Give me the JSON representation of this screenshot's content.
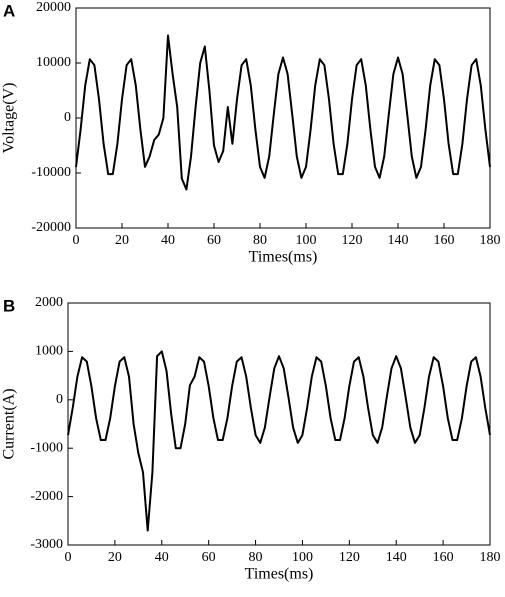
{
  "chart_data": [
    {
      "type": "line",
      "panel_label": "A",
      "xlabel": "Times(ms)",
      "ylabel": "Voltage(V)",
      "xlim": [
        0,
        180
      ],
      "ylim": [
        -20000,
        20000
      ],
      "xticks": [
        0,
        20,
        40,
        60,
        80,
        100,
        120,
        140,
        160,
        180
      ],
      "yticks": [
        -20000,
        -10000,
        0,
        10000,
        20000
      ],
      "series": [
        {
          "color": "#000000",
          "x": [
            0,
            2,
            4,
            6,
            8,
            10,
            12,
            14,
            16,
            18,
            20,
            22,
            24,
            26,
            28,
            30,
            32,
            34,
            36,
            38,
            40,
            42,
            44,
            46,
            48,
            50,
            52,
            54,
            56,
            58,
            60,
            62,
            64,
            66,
            68,
            70,
            72,
            74,
            76,
            78,
            80,
            82,
            84,
            86,
            88,
            90,
            92,
            94,
            96,
            98,
            100,
            102,
            104,
            106,
            108,
            110,
            112,
            114,
            116,
            118,
            120,
            122,
            124,
            126,
            128,
            130,
            132,
            134,
            136,
            138,
            140,
            142,
            144,
            146,
            148,
            150,
            152,
            154,
            156,
            158,
            160,
            162,
            164,
            166,
            168,
            170,
            172,
            174,
            176,
            178,
            180
          ],
          "values": [
            -8900,
            -2100,
            5900,
            10700,
            9600,
            3400,
            -4700,
            -10200,
            -10200,
            -4700,
            3400,
            9600,
            10700,
            5900,
            -2100,
            -8900,
            -7000,
            -4000,
            -3000,
            0,
            15000,
            8000,
            2000,
            -11000,
            -13000,
            -7000,
            2000,
            10000,
            13000,
            5000,
            -5000,
            -8000,
            -6000,
            2000,
            -4700,
            3400,
            9600,
            10700,
            5900,
            -2100,
            -8900,
            -10900,
            -7000,
            700,
            8000,
            11000,
            8000,
            700,
            -7000,
            -10900,
            -8900,
            -2100,
            5900,
            10700,
            9600,
            3400,
            -4700,
            -10200,
            -10200,
            -4700,
            3400,
            9600,
            10700,
            5900,
            -2100,
            -8900,
            -10900,
            -7000,
            700,
            8000,
            11000,
            8000,
            700,
            -7000,
            -10900,
            -8900,
            -2100,
            5900,
            10700,
            9600,
            3400,
            -4700,
            -10200,
            -10200,
            -4700,
            3400,
            9600,
            10700,
            5900,
            -2100,
            -8900
          ]
        }
      ]
    },
    {
      "type": "line",
      "panel_label": "B",
      "xlabel": "Times(ms)",
      "ylabel": "Current(A)",
      "xlim": [
        0,
        180
      ],
      "ylim": [
        -3000,
        2000
      ],
      "xticks": [
        0,
        20,
        40,
        60,
        80,
        100,
        120,
        140,
        160,
        180
      ],
      "yticks": [
        -3000,
        -2000,
        -1000,
        0,
        1000,
        2000
      ],
      "series": [
        {
          "color": "#000000",
          "x": [
            0,
            2,
            4,
            6,
            8,
            10,
            12,
            14,
            16,
            18,
            20,
            22,
            24,
            26,
            28,
            30,
            32,
            34,
            36,
            38,
            40,
            42,
            44,
            46,
            48,
            50,
            52,
            54,
            56,
            58,
            60,
            62,
            64,
            66,
            68,
            70,
            72,
            74,
            76,
            78,
            80,
            82,
            84,
            86,
            88,
            90,
            92,
            94,
            96,
            98,
            100,
            102,
            104,
            106,
            108,
            110,
            112,
            114,
            116,
            118,
            120,
            122,
            124,
            126,
            128,
            130,
            132,
            134,
            136,
            138,
            140,
            142,
            144,
            146,
            148,
            150,
            152,
            154,
            156,
            158,
            160,
            162,
            164,
            166,
            168,
            170,
            172,
            174,
            176,
            178,
            180
          ],
          "values": [
            -730,
            -170,
            480,
            880,
            790,
            280,
            -380,
            -830,
            -830,
            -380,
            280,
            790,
            880,
            480,
            -500,
            -1100,
            -1500,
            -2700,
            -1500,
            900,
            1000,
            600,
            -300,
            -1000,
            -1000,
            -500,
            300,
            480,
            880,
            790,
            280,
            -380,
            -830,
            -830,
            -380,
            280,
            790,
            880,
            480,
            -170,
            -730,
            -890,
            -570,
            60,
            650,
            900,
            650,
            60,
            -570,
            -890,
            -730,
            -170,
            480,
            880,
            790,
            280,
            -380,
            -830,
            -830,
            -380,
            280,
            790,
            880,
            480,
            -170,
            -730,
            -890,
            -570,
            60,
            650,
            900,
            650,
            60,
            -570,
            -890,
            -730,
            -170,
            480,
            880,
            790,
            280,
            -380,
            -830,
            -830,
            -380,
            280,
            790,
            880,
            480,
            -170,
            -730
          ]
        }
      ]
    }
  ]
}
